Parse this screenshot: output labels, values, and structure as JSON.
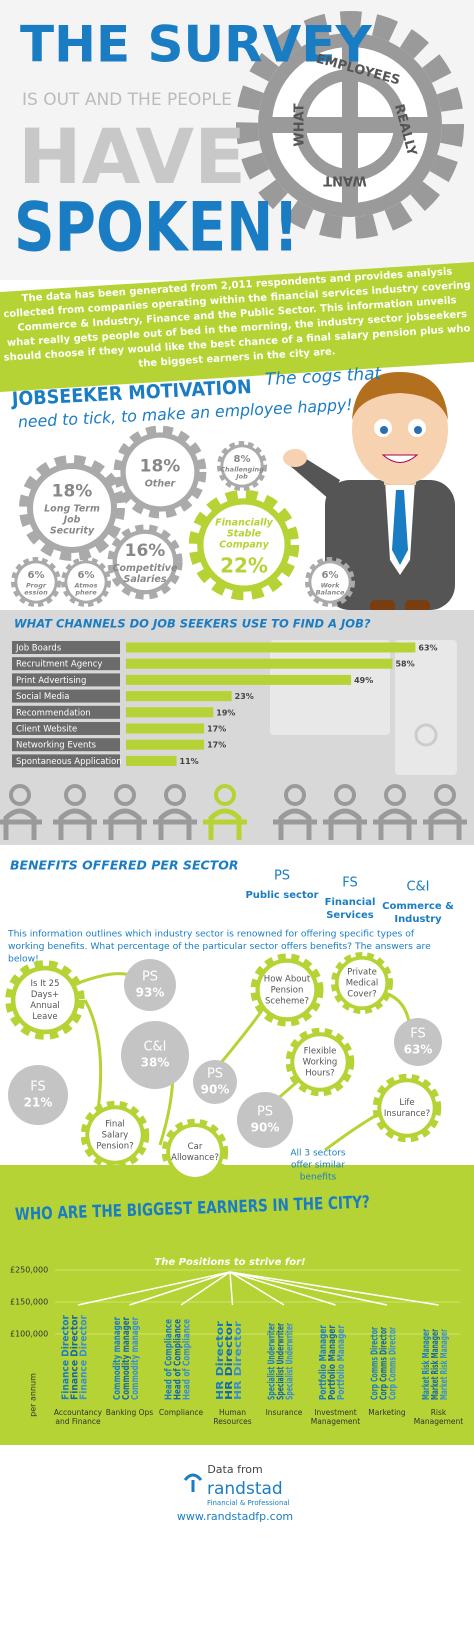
{
  "header": {
    "title_1": "THE SURVEY",
    "title_2": "IS OUT AND THE PEOPLE",
    "title_3": "HAVE",
    "title_4": "SPOKEN!",
    "cog_words": [
      "WHAT",
      "EMPLOYEES",
      "REALLY",
      "WANT"
    ],
    "intro": [
      "The data has been generated from 2,011 respondents and provides analysis",
      "collected from companies operating within the financial services industry covering",
      "Commerce & Industry, Finance and the Public Sector. This information unveils",
      "what really gets people out of bed in the morning, the industry sector jobseekers",
      "should choose if they would like the best chance of a final salary pension plus who",
      "the biggest earners in the city are."
    ]
  },
  "motivation": {
    "title": "JOBSEEKER MOTIVATION",
    "subtitle": [
      "The cogs that",
      "need to tick, to make an employee happy!"
    ],
    "cogs": [
      {
        "value": "18%",
        "label": [
          "Other"
        ]
      },
      {
        "value": "18%",
        "label": [
          "Long Term",
          "Job",
          "Security"
        ]
      },
      {
        "value": "8%",
        "label": [
          "Challenging",
          "Job"
        ]
      },
      {
        "value": "16%",
        "label": [
          "Competitive",
          "Salaries"
        ]
      },
      {
        "value": "22%",
        "label": [
          "Financially",
          "Stable",
          "Company"
        ]
      },
      {
        "value": "6%",
        "label": [
          "Progr",
          "ession"
        ]
      },
      {
        "value": "6%",
        "label": [
          "Atmos",
          "phere"
        ]
      },
      {
        "value": "6%",
        "label": [
          "Work",
          "Balance"
        ]
      }
    ]
  },
  "channels": {
    "type": "bar",
    "title": "WHAT CHANNELS DO JOB SEEKERS USE TO FIND A JOB?",
    "categories": [
      "Job Boards",
      "Recruitment Agency",
      "Print Advertising",
      "Social Media",
      "Recommendation",
      "Client Website",
      "Networking Events",
      "Spontaneous Application"
    ],
    "values": [
      63,
      58,
      49,
      23,
      19,
      17,
      17,
      11
    ],
    "value_labels": [
      "63%",
      "58%",
      "49%",
      "23%",
      "19%",
      "17%",
      "17%",
      "11%"
    ],
    "xlim": [
      0,
      64
    ],
    "color": "#b5d334"
  },
  "benefits": {
    "title": "BENEFITS OFFERED PER SECTOR",
    "legend": [
      {
        "code": "PS",
        "name": [
          "Public sector"
        ]
      },
      {
        "code": "FS",
        "name": [
          "Financial",
          "Services"
        ]
      },
      {
        "code": "C&I",
        "name": [
          "Commerce &",
          "Industry"
        ]
      }
    ],
    "description": [
      "This information outlines which industry sector is renowned for offering specific types of",
      "working benefits. What percentage of the particular sector offers benefits? The answers are",
      "below!"
    ],
    "questions": [
      [
        "Is It 25",
        "Days+",
        "Annual",
        "Leave"
      ],
      [
        "Final",
        "Salary",
        "Pension?"
      ],
      [
        "Car",
        "Allowance?"
      ],
      [
        "How About",
        "Pension",
        "Sceheme?"
      ],
      [
        "Private",
        "Medical",
        "Cover?"
      ],
      [
        "Flexible",
        "Working",
        "Hours?"
      ],
      [
        "Life",
        "Insurance?"
      ]
    ],
    "answers": [
      [
        "PS",
        "93%"
      ],
      [
        "C&I",
        "38%"
      ],
      [
        "FS",
        "21%"
      ],
      [
        "PS",
        "90%"
      ],
      [
        "FS",
        "63%"
      ],
      [
        "PS",
        "90%"
      ]
    ],
    "note": [
      "All 3 sectors",
      "offer similar",
      "benefits"
    ]
  },
  "earners": {
    "title": "WHO ARE THE BIGGEST EARNERS IN THE CITY?",
    "subtitle": "The Positions to strive for!",
    "salary_labels": [
      "£250,000",
      "£150,000",
      "£100,000"
    ],
    "axis_label": "per annum",
    "sectors": [
      {
        "name": [
          "Accountancy",
          "and Finance"
        ],
        "job": "Finance Director"
      },
      {
        "name": [
          "Banking Ops"
        ],
        "job": "Commodity manager"
      },
      {
        "name": [
          "Compliance"
        ],
        "job": "Head of Compliance"
      },
      {
        "name": [
          "Human",
          "Resources"
        ],
        "job": "HR Director"
      },
      {
        "name": [
          "Insurance"
        ],
        "job": "Specialist Underwriter"
      },
      {
        "name": [
          "Investment",
          "Management"
        ],
        "job": "Portfolio Manager"
      },
      {
        "name": [
          "Marketing"
        ],
        "job": "Corp Comms Director"
      },
      {
        "name": [
          "Risk",
          "Management"
        ],
        "job": "Market Risk Manager"
      }
    ]
  },
  "footer": {
    "data_from": "Data from",
    "brand": "randstad",
    "brand_sub": "Financial & Professional",
    "url": "www.randstadfp.com"
  }
}
